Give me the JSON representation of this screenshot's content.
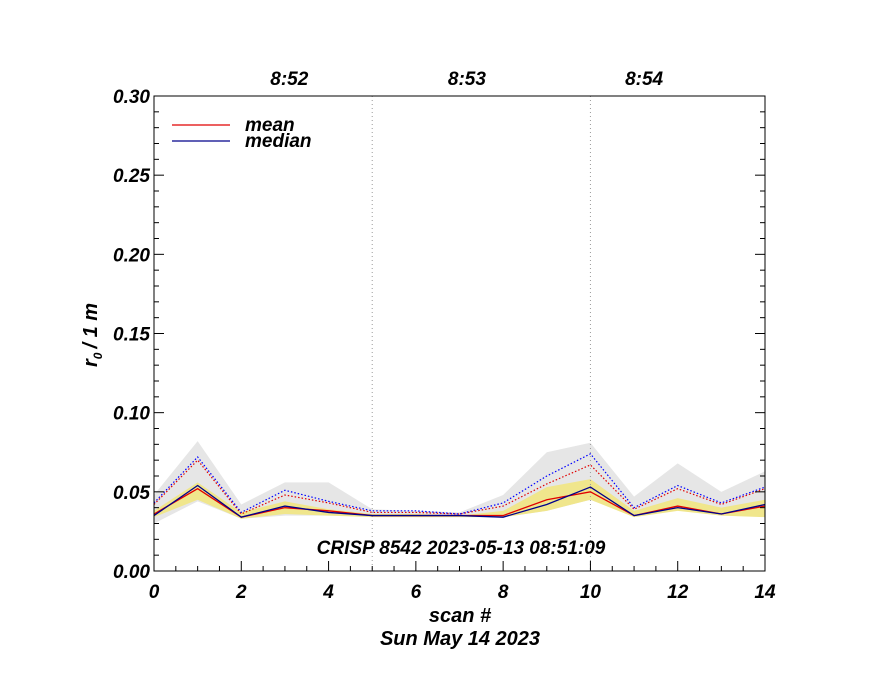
{
  "chart_data": {
    "type": "line",
    "xlabel": "scan #",
    "ylabel": "r",
    "ylabel_sub": "0",
    "ylabel_unit": "/ 1 m",
    "date_label": "Sun May 14 2023",
    "annotation": "CRISP 8542 2023-05-13 08:51:09",
    "xlim": [
      0,
      14
    ],
    "ylim": [
      0,
      0.3
    ],
    "x_ticks": [
      0,
      2,
      4,
      6,
      8,
      10,
      12,
      14
    ],
    "y_ticks": [
      0.0,
      0.05,
      0.1,
      0.15,
      0.2,
      0.25,
      0.3
    ],
    "y_tick_labels": [
      "0.00",
      "0.05",
      "0.10",
      "0.15",
      "0.20",
      "0.25",
      "0.30"
    ],
    "time_markers": [
      {
        "x": 5,
        "label": "8:52"
      },
      {
        "x": 10,
        "label": "8:53"
      }
    ],
    "top_labels": [
      {
        "x": 3.1,
        "label": "8:52"
      },
      {
        "x": 7.17,
        "label": "8:53"
      },
      {
        "x": 11.23,
        "label": "8:54"
      }
    ],
    "legend": {
      "placement": "top-left",
      "entries": [
        {
          "name": "mean",
          "color": "#e00000"
        },
        {
          "name": "median",
          "color": "#00008b"
        }
      ]
    },
    "x": [
      0,
      1,
      2,
      3,
      4,
      5,
      6,
      7,
      8,
      9,
      10,
      11,
      12,
      13,
      14
    ],
    "gray_band": {
      "low": [
        0.03,
        0.044,
        0.033,
        0.035,
        0.035,
        0.035,
        0.034,
        0.034,
        0.034,
        0.038,
        0.045,
        0.035,
        0.039,
        0.035,
        0.035
      ],
      "high": [
        0.048,
        0.082,
        0.042,
        0.056,
        0.056,
        0.039,
        0.038,
        0.037,
        0.048,
        0.075,
        0.081,
        0.047,
        0.068,
        0.05,
        0.063
      ],
      "color": "#e6e6e6"
    },
    "yellow_band": {
      "low": [
        0.034,
        0.045,
        0.033,
        0.036,
        0.035,
        0.034,
        0.034,
        0.034,
        0.034,
        0.038,
        0.045,
        0.034,
        0.038,
        0.035,
        0.034
      ],
      "high": [
        0.038,
        0.056,
        0.037,
        0.044,
        0.039,
        0.036,
        0.036,
        0.035,
        0.038,
        0.053,
        0.058,
        0.038,
        0.046,
        0.04,
        0.045
      ],
      "color": "#f0e68c"
    },
    "series": [
      {
        "name": "mean",
        "color": "#e00000",
        "style": "solid",
        "values": [
          0.036,
          0.052,
          0.034,
          0.04,
          0.038,
          0.035,
          0.035,
          0.035,
          0.035,
          0.045,
          0.05,
          0.035,
          0.041,
          0.036,
          0.041
        ]
      },
      {
        "name": "median",
        "color": "#00008b",
        "style": "solid",
        "values": [
          0.035,
          0.054,
          0.034,
          0.041,
          0.037,
          0.035,
          0.035,
          0.035,
          0.034,
          0.042,
          0.053,
          0.035,
          0.04,
          0.036,
          0.042
        ]
      },
      {
        "name": "",
        "color": "#e00000",
        "style": "dotted",
        "values": [
          0.042,
          0.07,
          0.036,
          0.048,
          0.043,
          0.037,
          0.037,
          0.036,
          0.041,
          0.055,
          0.067,
          0.039,
          0.052,
          0.042,
          0.052
        ]
      },
      {
        "name": "",
        "color": "#0000ff",
        "style": "dotted",
        "values": [
          0.043,
          0.072,
          0.037,
          0.051,
          0.044,
          0.038,
          0.038,
          0.036,
          0.043,
          0.06,
          0.074,
          0.04,
          0.054,
          0.043,
          0.053
        ]
      }
    ]
  }
}
